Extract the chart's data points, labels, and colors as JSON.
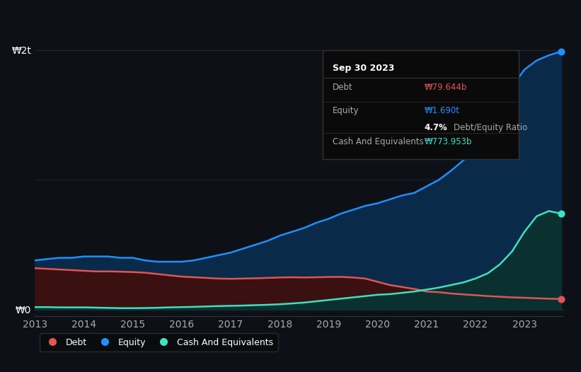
{
  "background_color": "#0d1117",
  "plot_bg_color": "#0d1117",
  "years": [
    2013.0,
    2013.25,
    2013.5,
    2013.75,
    2014.0,
    2014.25,
    2014.5,
    2014.75,
    2015.0,
    2015.25,
    2015.5,
    2015.75,
    2016.0,
    2016.25,
    2016.5,
    2016.75,
    2017.0,
    2017.25,
    2017.5,
    2017.75,
    2018.0,
    2018.25,
    2018.5,
    2018.75,
    2019.0,
    2019.25,
    2019.5,
    2019.75,
    2020.0,
    2020.25,
    2020.5,
    2020.75,
    2021.0,
    2021.25,
    2021.5,
    2021.75,
    2022.0,
    2022.25,
    2022.5,
    2022.75,
    2023.0,
    2023.25,
    2023.5,
    2023.75
  ],
  "equity": [
    0.38,
    0.39,
    0.4,
    0.4,
    0.41,
    0.41,
    0.41,
    0.4,
    0.4,
    0.38,
    0.37,
    0.37,
    0.37,
    0.38,
    0.4,
    0.42,
    0.44,
    0.47,
    0.5,
    0.53,
    0.57,
    0.6,
    0.63,
    0.67,
    0.7,
    0.74,
    0.77,
    0.8,
    0.82,
    0.85,
    0.88,
    0.9,
    0.95,
    1.0,
    1.07,
    1.15,
    1.25,
    1.4,
    1.55,
    1.72,
    1.85,
    1.92,
    1.96,
    1.99
  ],
  "debt": [
    0.32,
    0.315,
    0.31,
    0.305,
    0.3,
    0.295,
    0.295,
    0.293,
    0.29,
    0.285,
    0.275,
    0.265,
    0.255,
    0.25,
    0.245,
    0.24,
    0.238,
    0.24,
    0.242,
    0.245,
    0.248,
    0.25,
    0.248,
    0.25,
    0.252,
    0.253,
    0.248,
    0.24,
    0.215,
    0.19,
    0.175,
    0.16,
    0.14,
    0.135,
    0.125,
    0.118,
    0.112,
    0.105,
    0.1,
    0.095,
    0.092,
    0.088,
    0.085,
    0.082
  ],
  "cash": [
    0.02,
    0.02,
    0.018,
    0.018,
    0.018,
    0.016,
    0.014,
    0.012,
    0.012,
    0.013,
    0.015,
    0.018,
    0.02,
    0.022,
    0.025,
    0.028,
    0.03,
    0.032,
    0.035,
    0.038,
    0.042,
    0.048,
    0.055,
    0.065,
    0.075,
    0.085,
    0.095,
    0.105,
    0.115,
    0.12,
    0.13,
    0.14,
    0.155,
    0.17,
    0.19,
    0.21,
    0.24,
    0.28,
    0.35,
    0.45,
    0.6,
    0.72,
    0.76,
    0.74
  ],
  "equity_color": "#1e90ff",
  "debt_color": "#e05555",
  "cash_color": "#40e0c0",
  "equity_fill_color": "#0a2a4a",
  "debt_fill_color": "#3a1010",
  "cash_fill_color": "#0a3030",
  "ytick_labels": [
    "₩0",
    "₩2t"
  ],
  "ytick_values": [
    0,
    2.0
  ],
  "grid_color": "#1e2a3a",
  "tooltip": {
    "date": "Sep 30 2023",
    "debt_label": "Debt",
    "debt_value": "₩79.644b",
    "equity_label": "Equity",
    "equity_value": "₩1.690t",
    "ratio_value": "4.7%",
    "ratio_label": "Debt/Equity Ratio",
    "cash_label": "Cash And Equivalents",
    "cash_value": "₩773.953b",
    "bg_color": "#0a0a0a",
    "border_color": "#333333"
  },
  "legend_items": [
    "Debt",
    "Equity",
    "Cash And Equivalents"
  ],
  "legend_colors": [
    "#e05555",
    "#1e90ff",
    "#40e0c0"
  ]
}
